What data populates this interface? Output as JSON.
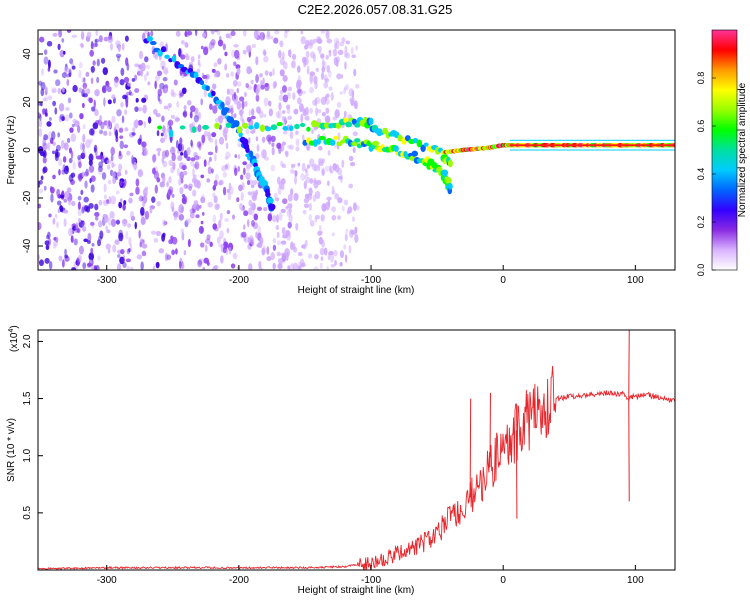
{
  "title": "C2E2.2026.057.08.31.G25",
  "chart_data": [
    {
      "type": "heatmap",
      "xlabel": "Height of straight line (km)",
      "ylabel": "Frequency (Hz)",
      "xlim": [
        -352,
        130
      ],
      "ylim": [
        -50,
        50
      ],
      "xticks": [
        -300,
        -200,
        -100,
        0,
        100
      ],
      "yticks": [
        -40,
        -20,
        0,
        20,
        40
      ],
      "colorbar": {
        "label": "Normalized spectral amplitude",
        "range": [
          0,
          1
        ],
        "ticks": [
          0.0,
          0.2,
          0.4,
          0.6,
          0.8
        ],
        "colors": [
          "#ffffff",
          "#d9b3ff",
          "#8a2be2",
          "#3300ff",
          "#0066ff",
          "#00ccff",
          "#00e0a0",
          "#00ff00",
          "#99ff00",
          "#ffff00",
          "#ff9900",
          "#ff0000",
          "#ff3399"
        ]
      },
      "tracks": [
        {
          "name": "downward-chirp",
          "points": [
            [
              -270,
              46
            ],
            [
              -240,
              34
            ],
            [
              -215,
              20
            ],
            [
              -200,
              8
            ],
            [
              -190,
              -4
            ],
            [
              -180,
              -16
            ],
            [
              -175,
              -24
            ]
          ]
        },
        {
          "name": "upper-branch",
          "points": [
            [
              -260,
              8
            ],
            [
              -200,
              9
            ],
            [
              -170,
              10
            ],
            [
              -140,
              10
            ],
            [
              -120,
              11
            ],
            [
              -105,
              12
            ],
            [
              -95,
              9
            ],
            [
              -80,
              6
            ],
            [
              -60,
              2
            ],
            [
              -45,
              -2
            ],
            [
              -40,
              -6
            ]
          ]
        },
        {
          "name": "lower-branch",
          "points": [
            [
              -150,
              4
            ],
            [
              -120,
              4
            ],
            [
              -100,
              2
            ],
            [
              -80,
              0
            ],
            [
              -60,
              -4
            ],
            [
              -45,
              -10
            ],
            [
              -40,
              -16
            ]
          ]
        },
        {
          "name": "stable-line",
          "points": [
            [
              -45,
              -1
            ],
            [
              -30,
              0
            ],
            [
              -10,
              1
            ],
            [
              0,
              2
            ],
            [
              20,
              2
            ],
            [
              50,
              2
            ],
            [
              80,
              2
            ],
            [
              95,
              2
            ],
            [
              130,
              2
            ]
          ]
        }
      ],
      "noise_region": {
        "x_range": [
          -352,
          -110
        ],
        "freq_range": [
          -50,
          50
        ]
      }
    },
    {
      "type": "line",
      "xlabel": "Height of straight line (km)",
      "ylabel": "SNR (10 * v/v)",
      "multiplier_label": "(x10",
      "multiplier_exp": "4",
      "multiplier_close": ")",
      "xlim": [
        -352,
        130
      ],
      "ylim": [
        0,
        2.1
      ],
      "xticks": [
        -300,
        -200,
        -100,
        0,
        100
      ],
      "yticks": [
        0.5,
        1.0,
        1.5,
        2.0
      ],
      "ytick_labels": [
        "0.5",
        "1.0",
        "1.5",
        "2.0"
      ],
      "color": "#e8252b",
      "series": [
        {
          "name": "SNR",
          "x": [
            -352,
            -300,
            -250,
            -200,
            -150,
            -120,
            -100,
            -80,
            -60,
            -50,
            -40,
            -30,
            -20,
            -10,
            0,
            10,
            20,
            30,
            40,
            60,
            80,
            90,
            95,
            100,
            110,
            130
          ],
          "y": [
            0.01,
            0.02,
            0.02,
            0.02,
            0.02,
            0.03,
            0.06,
            0.14,
            0.25,
            0.32,
            0.45,
            0.55,
            0.72,
            0.9,
            1.05,
            1.22,
            1.34,
            1.43,
            1.5,
            1.53,
            1.55,
            1.54,
            1.5,
            1.52,
            1.53,
            1.48
          ]
        }
      ],
      "spikes": [
        {
          "x": -25,
          "y": 1.5
        },
        {
          "x": -10,
          "y": 1.55
        },
        {
          "x": 10,
          "y": 0.45
        },
        {
          "x": 95,
          "y": 2.1
        },
        {
          "x": 95,
          "y": 0.6
        }
      ]
    }
  ]
}
